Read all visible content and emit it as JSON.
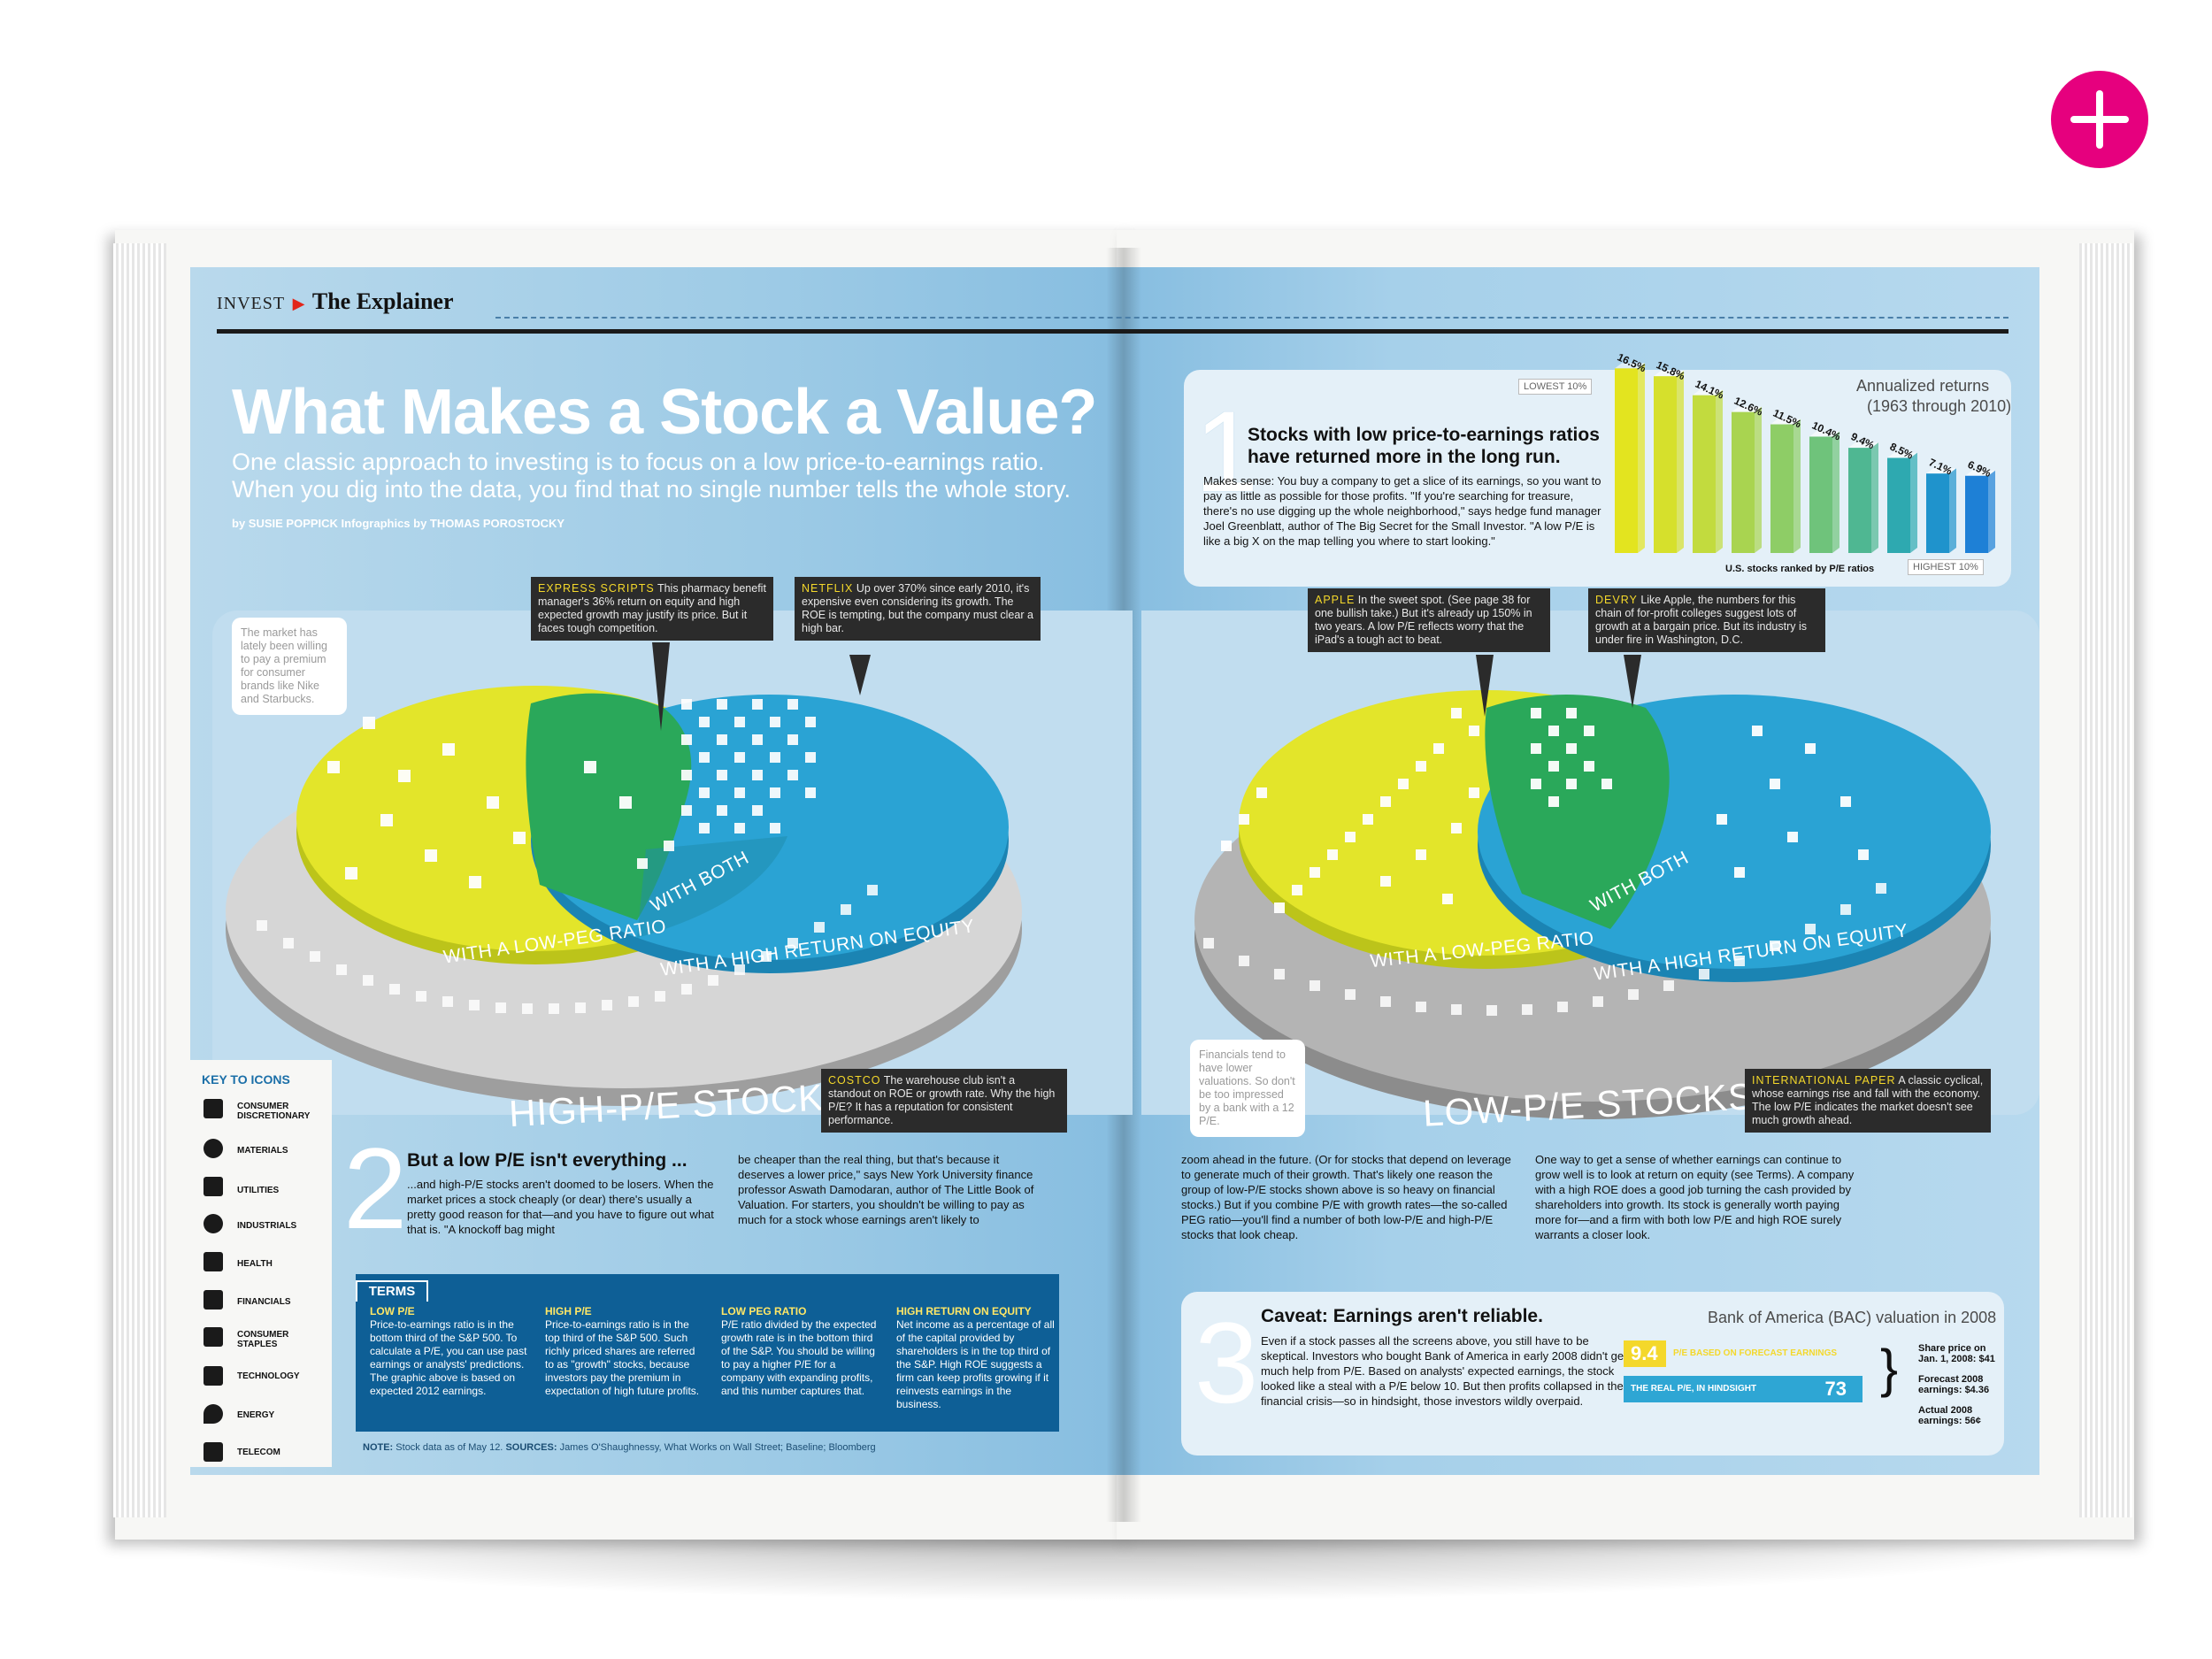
{
  "header": {
    "section": "INVEST",
    "title": "The Explainer"
  },
  "article": {
    "headline": "What Makes a Stock a Value?",
    "dek_line1": "One classic approach to investing is to focus on a low price-to-earnings ratio.",
    "dek_line2": "When you dig into the data, you find that no single number tells the whole story.",
    "byline": "by SUSIE POPPICK  Infographics by THOMAS POROSTOCKY"
  },
  "callouts": {
    "express": {
      "name": "EXPRESS SCRIPTS",
      "text": "This pharmacy benefit manager's 36% return on equity and high expected growth may justify its price. But it faces tough competition."
    },
    "netflix": {
      "name": "NETFLIX",
      "text": "Up over 370% since early 2010, it's expensive even considering its growth. The ROE is tempting, but the company must clear a high bar."
    },
    "costco": {
      "name": "COSTCO",
      "text": "The warehouse club isn't a standout on ROE or growth rate. Why the high P/E? It has a reputation for consistent performance."
    },
    "apple": {
      "name": "APPLE",
      "text": "In the sweet spot. (See page 38 for one bullish take.) But it's already up 150% in two years. A low P/E reflects worry that the iPad's a tough act to beat."
    },
    "devry": {
      "name": "DEVRY",
      "text": "Like Apple, the numbers for this chain of for-profit colleges suggest lots of growth at a bargain price. But its industry is under fire in Washington, D.C."
    },
    "intl_paper": {
      "name": "INTERNATIONAL PAPER",
      "text": "A classic cyclical, whose earnings rise and fall with the economy. The low P/E indicates the market doesn't see much growth ahead."
    },
    "bubble_left": "The market has lately been willing to pay a premium for consumer brands like Nike and Starbucks.",
    "bubble_right": "Financials tend to have lower valuations. So don't be too impressed by a bank with a 12 P/E."
  },
  "pies": {
    "left": {
      "low_peg": "WITH A LOW-PEG RATIO",
      "both": "WITH BOTH",
      "high_roe": "WITH A HIGH RETURN ON EQUITY",
      "group": "HIGH-P/E STOCKS"
    },
    "right": {
      "low_peg": "WITH A LOW-PEG RATIO",
      "both": "WITH BOTH",
      "high_roe": "WITH A HIGH RETURN ON EQUITY",
      "group": "LOW-P/E STOCKS"
    }
  },
  "key": {
    "title": "KEY TO ICONS",
    "items": [
      "CONSUMER DISCRETIONARY",
      "MATERIALS",
      "UTILITIES",
      "INDUSTRIALS",
      "HEALTH",
      "FINANCIALS",
      "CONSUMER STAPLES",
      "TECHNOLOGY",
      "ENERGY",
      "TELECOM"
    ]
  },
  "section1": {
    "num": "1",
    "heading_l1": "Stocks with low price-to-earnings ratios",
    "heading_l2": "have returned more in the long run.",
    "body": "Makes sense: You buy a company to get a slice of its earnings, so you want to pay as little as possible for those profits. \"If you're searching for treasure, there's no use digging up the whole neighborhood,\" says hedge fund manager Joel Greenblatt, author of The Big Secret for the Small Investor. \"A low P/E is like a big X on the map telling you where to start looking.\""
  },
  "section2": {
    "num": "2",
    "heading": "But a low P/E isn't everything ...",
    "col1": "...and high-P/E stocks aren't doomed to be losers. When the market prices a stock cheaply (or dear) there's usually a pretty good reason for that—and you have to figure out what that is. \"A knockoff bag might",
    "col2": "be cheaper than the real thing, but that's because it deserves a lower price,\" says New York University finance professor Aswath Damodaran, author of The Little Book of Valuation.    For starters, you shouldn't be willing to pay as much for a stock whose earnings aren't likely to",
    "col3": "zoom ahead in the future. (Or for stocks that depend on leverage to generate much of their growth. That's likely one reason the group of low-P/E stocks shown above is so heavy on financial stocks.) But if you combine P/E with growth rates—the so-called PEG ratio—you'll find a number of both low-P/E and high-P/E stocks that look cheap.",
    "col4": "One way to get a sense of whether earnings can continue to grow well is to look at return on equity (see Terms). A company with a high ROE does a good job turning the cash provided by shareholders into growth. Its stock is generally worth paying more for—and a firm with both low P/E and high ROE surely warrants a closer look."
  },
  "terms": {
    "title": "TERMS",
    "items": [
      {
        "term": "LOW P/E",
        "def": "Price-to-earnings ratio is in the bottom third of the S&P 500. To calculate a P/E, you can use past earnings or analysts' predictions. The graphic above is based on expected 2012 earnings."
      },
      {
        "term": "HIGH P/E",
        "def": "Price-to-earnings ratio is in the top third of the S&P 500. Such richly priced shares are referred to as \"growth\" stocks, because investors pay the premium in expectation of high future profits."
      },
      {
        "term": "LOW PEG RATIO",
        "def": "P/E ratio divided by the expected growth rate is in the bottom third of the S&P. You should be willing to pay a higher P/E for a company with expanding profits, and this number captures that."
      },
      {
        "term": "HIGH RETURN ON EQUITY",
        "def": "Net income as a percentage of all of the capital provided by shareholders is in the top third of the S&P. High ROE suggests a firm can keep profits growing if it reinvests earnings in the business."
      }
    ],
    "note_label": "NOTE:",
    "note": "Stock data as of May 12.",
    "sources_label": "SOURCES:",
    "sources": "James O'Shaughnessy, What Works on Wall Street; Baseline; Bloomberg"
  },
  "section3": {
    "num": "3",
    "heading": "Caveat: Earnings aren't reliable.",
    "body": "Even if a stock passes all the screens above, you still have to be skeptical. Investors who bought Bank of America in early 2008 didn't get much help from P/E. Based on analysts' expected earnings, the stock looked like a steal with a P/E below 10. But then profits collapsed in the financial crisis—so in hindsight, those investors wildly overpaid."
  },
  "chart_data": [
    {
      "type": "bar",
      "title": "Annualized returns",
      "subtitle": "(1963 through 2010)",
      "xlabel": "U.S. stocks ranked by P/E ratios",
      "categories": [
        "1",
        "2",
        "3",
        "4",
        "5",
        "6",
        "7",
        "8",
        "9",
        "10"
      ],
      "values": [
        16.5,
        15.8,
        14.1,
        12.6,
        11.5,
        10.4,
        9.4,
        8.5,
        7.1,
        6.9
      ],
      "value_labels": [
        "16.5%",
        "15.8%",
        "14.1%",
        "12.6%",
        "11.5%",
        "10.4%",
        "9.4%",
        "8.5%",
        "7.1%",
        "6.9%"
      ],
      "colors": [
        "#e3e41f",
        "#d6e02c",
        "#c2db3e",
        "#a9d450",
        "#8ecd66",
        "#6fc37b",
        "#4fb792",
        "#2ea9b0",
        "#1f93cc",
        "#1e80d6"
      ],
      "end_labels": {
        "left": "LOWEST 10%",
        "right": "HIGHEST 10%"
      },
      "ylim": [
        0,
        17
      ]
    },
    {
      "type": "bar",
      "title": "Bank of America (BAC) valuation in 2008",
      "categories": [
        "P/E BASED ON FORECAST EARNINGS",
        "THE REAL P/E, IN HINDSIGHT"
      ],
      "values": [
        9.4,
        73
      ],
      "value_labels": [
        "9.4",
        "73"
      ],
      "colors": [
        "#f4d82b",
        "#2ea6d4"
      ],
      "notes": [
        {
          "label": "Share price on Jan. 1, 2008: $41"
        },
        {
          "label": "Forecast 2008 earnings: $4.36"
        },
        {
          "label": "Actual 2008 earnings: 56¢"
        }
      ]
    }
  ]
}
